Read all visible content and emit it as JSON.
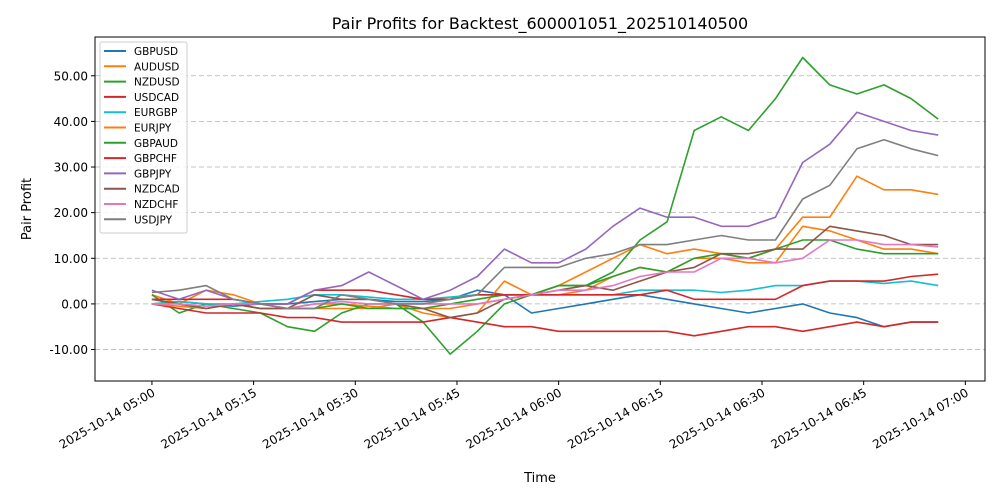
{
  "chart_data": {
    "type": "line",
    "title": "Pair Profits for Backtest_600001051_202510140500",
    "xlabel": "Time",
    "ylabel": "Pair Profit",
    "ylim": [
      -16.9,
      58.5
    ],
    "xlim_minutes_from_first_tick": [
      -8.4,
      122.9
    ],
    "grid": "y-dashed",
    "legend_position": "top-left",
    "yticks": [
      "-10.00",
      "0.00",
      "10.00",
      "20.00",
      "30.00",
      "40.00",
      "50.00"
    ],
    "ytick_values": [
      -10,
      0,
      10,
      20,
      30,
      40,
      50
    ],
    "xticks": [
      "2025-10-14 05:00",
      "2025-10-14 05:15",
      "2025-10-14 05:30",
      "2025-10-14 05:45",
      "2025-10-14 06:00",
      "2025-10-14 06:15",
      "2025-10-14 06:30",
      "2025-10-14 06:45",
      "2025-10-14 07:00"
    ],
    "x": [
      "05:00",
      "05:04",
      "05:08",
      "05:12",
      "05:16",
      "05:20",
      "05:24",
      "05:28",
      "05:32",
      "05:36",
      "05:40",
      "05:44",
      "05:48",
      "05:52",
      "05:56",
      "06:00",
      "06:04",
      "06:08",
      "06:12",
      "06:16",
      "06:20",
      "06:24",
      "06:28",
      "06:32",
      "06:36",
      "06:40",
      "06:44",
      "06:48",
      "06:52",
      "06:56"
    ],
    "series": [
      {
        "name": "GBPUSD",
        "color": "#1f77b4",
        "values": [
          0,
          0.5,
          0,
          -0.5,
          0,
          0,
          0.5,
          1,
          1,
          0.5,
          0.5,
          1,
          3,
          2,
          -2,
          -1,
          0,
          1,
          2,
          1,
          0,
          -1,
          -2,
          -1,
          0,
          -2,
          -3,
          -5,
          -4,
          -4
        ]
      },
      {
        "name": "AUDUSD",
        "color": "#ff7f0e",
        "values": [
          2,
          0,
          3,
          2,
          0,
          -1,
          -1,
          -1,
          -1,
          0,
          -2,
          -3,
          -2,
          5,
          2,
          4,
          7,
          10,
          13,
          11,
          12,
          11,
          10,
          12,
          19,
          19,
          28,
          25,
          25,
          24
        ]
      },
      {
        "name": "NZDUSD",
        "color": "#2ca02c",
        "values": [
          2,
          -2,
          0,
          -1,
          -2,
          -5,
          -6,
          -2,
          0,
          0,
          -4,
          -11,
          -6,
          0,
          2,
          4,
          4,
          7,
          14,
          18,
          38,
          41,
          38,
          45,
          54,
          48,
          46,
          48,
          45,
          40.5
        ]
      },
      {
        "name": "USDCAD",
        "color": "#d62728",
        "values": [
          0,
          -1,
          -2,
          -2,
          -2,
          -3,
          -3,
          -4,
          -4,
          -4,
          -4,
          -3,
          -4,
          -5,
          -5,
          -6,
          -6,
          -6,
          -6,
          -6,
          -7,
          -6,
          -5,
          -5,
          -6,
          -5,
          -4,
          -5,
          -4,
          -4
        ]
      },
      {
        "name": "EURGBP",
        "color": "#17becf",
        "values": [
          0,
          0.5,
          0,
          0,
          0.5,
          1,
          2,
          2,
          1.5,
          1,
          1,
          1.5,
          2,
          2,
          2,
          2,
          2,
          2,
          3,
          3,
          3,
          2.5,
          3,
          4,
          4,
          5,
          5,
          4.5,
          5,
          4
        ]
      },
      {
        "name": "EURJPY",
        "color": "#ff7f0e",
        "values": [
          0,
          -0.5,
          -1,
          0,
          -1,
          -1,
          0,
          0,
          -0.5,
          -1,
          -1,
          -1,
          0,
          1,
          2,
          2,
          3,
          6,
          8,
          7,
          10,
          10,
          9,
          9,
          17,
          16,
          14,
          12,
          12,
          11
        ]
      },
      {
        "name": "GBPAUD",
        "color": "#2ca02c",
        "values": [
          1,
          0,
          -1,
          0,
          -1,
          -1,
          -1,
          0,
          -1,
          -1,
          -1,
          0,
          1,
          2,
          2,
          4,
          4,
          6,
          8,
          7,
          10,
          11,
          10,
          12,
          14,
          14,
          12,
          11,
          11,
          11
        ]
      },
      {
        "name": "GBPCHF",
        "color": "#d62728",
        "values": [
          1,
          1,
          1,
          1,
          0,
          0,
          3,
          3,
          3,
          2,
          1,
          1,
          2,
          2,
          2,
          2,
          2,
          2,
          2,
          3,
          1,
          1,
          1,
          1,
          4,
          5,
          5,
          5,
          6,
          6.5
        ]
      },
      {
        "name": "GBPJPY",
        "color": "#9467bd",
        "values": [
          3,
          1,
          3,
          1,
          0,
          0,
          3,
          4,
          7,
          4,
          1,
          3,
          6,
          12,
          9,
          9,
          12,
          17,
          21,
          19,
          19,
          17,
          17,
          19,
          31,
          35,
          42,
          40,
          38,
          37
        ]
      },
      {
        "name": "NZDCAD",
        "color": "#8c564b",
        "values": [
          1,
          0,
          -1,
          0,
          -1,
          -1,
          2,
          1,
          1,
          0,
          -1,
          -3,
          -2,
          1,
          2,
          3,
          4,
          3,
          5,
          7,
          8,
          11,
          11,
          12,
          12,
          17,
          16,
          15,
          13,
          13
        ]
      },
      {
        "name": "NZDCHF",
        "color": "#e377c2",
        "values": [
          0,
          0,
          -0.5,
          0,
          0,
          -1,
          0,
          0.5,
          0,
          0,
          0,
          0,
          0,
          1,
          2,
          3,
          3,
          4,
          6,
          7,
          7,
          10,
          10,
          9,
          10,
          14,
          14,
          13,
          13,
          12.5
        ]
      },
      {
        "name": "USDJPY",
        "color": "#7f7f7f",
        "values": [
          2.5,
          3,
          4,
          1,
          0,
          -1,
          -1,
          2,
          1,
          0,
          0,
          1,
          2,
          8,
          8,
          8,
          10,
          11,
          13,
          13,
          14,
          15,
          14,
          14,
          23,
          26,
          34,
          36,
          34,
          32.5
        ]
      }
    ]
  }
}
